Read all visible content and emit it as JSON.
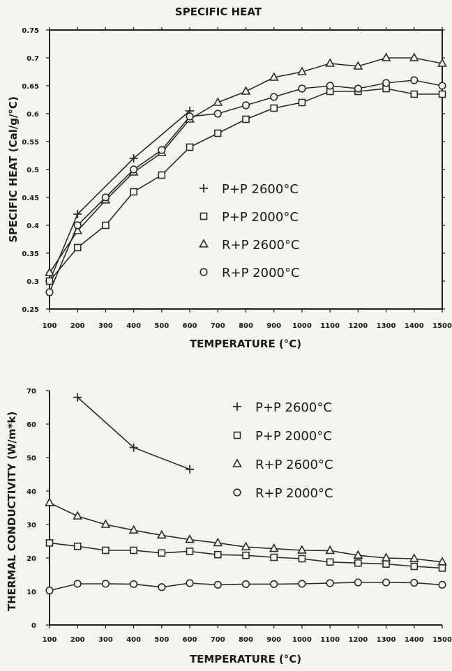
{
  "chart_data": [
    {
      "type": "line",
      "title": "SPECIFIC HEAT",
      "xlabel": "TEMPERATURE (°C)",
      "ylabel": "SPECIFIC HEAT (Cal/g/°C)",
      "xlim": [
        100,
        1500
      ],
      "ylim": [
        0.25,
        0.75
      ],
      "x_ticks": [
        "100",
        "200",
        "300",
        "400",
        "500",
        "600",
        "700",
        "800",
        "900",
        "1000",
        "1100",
        "1200",
        "1300",
        "1400",
        "1500"
      ],
      "y_ticks": [
        "0.25",
        "0.3",
        "0.35",
        "0.4",
        "0.45",
        "0.5",
        "0.55",
        "0.6",
        "0.65",
        "0.7",
        "0.75"
      ],
      "legend_position": "center-right",
      "grid": false,
      "series": [
        {
          "name": "P+P 2600°C",
          "marker": "plus",
          "x": [
            100,
            200,
            400,
            600
          ],
          "y": [
            0.3,
            0.42,
            0.52,
            0.605
          ]
        },
        {
          "name": "P+P 2000°C",
          "marker": "square",
          "x": [
            100,
            200,
            300,
            400,
            500,
            600,
            700,
            800,
            900,
            1000,
            1100,
            1200,
            1300,
            1400,
            1500
          ],
          "y": [
            0.3,
            0.36,
            0.4,
            0.46,
            0.49,
            0.54,
            0.565,
            0.59,
            0.61,
            0.62,
            0.64,
            0.64,
            0.645,
            0.635,
            0.635
          ]
        },
        {
          "name": "R+P 2600°C",
          "marker": "triangle",
          "x": [
            100,
            200,
            300,
            400,
            500,
            600,
            700,
            800,
            900,
            1000,
            1100,
            1200,
            1300,
            1400,
            1500
          ],
          "y": [
            0.315,
            0.39,
            0.445,
            0.495,
            0.53,
            0.59,
            0.62,
            0.64,
            0.665,
            0.675,
            0.69,
            0.685,
            0.7,
            0.7,
            0.69
          ]
        },
        {
          "name": "R+P 2000°C",
          "marker": "circle",
          "x": [
            100,
            200,
            300,
            400,
            500,
            600,
            700,
            800,
            900,
            1000,
            1100,
            1200,
            1300,
            1400,
            1500
          ],
          "y": [
            0.28,
            0.4,
            0.45,
            0.5,
            0.535,
            0.595,
            0.6,
            0.615,
            0.63,
            0.645,
            0.65,
            0.645,
            0.655,
            0.66,
            0.65
          ]
        }
      ]
    },
    {
      "type": "line",
      "title": "",
      "xlabel": "TEMPERATURE (°C)",
      "ylabel": "THERMAL CONDUCTIVITY (W/m*k)",
      "xlim": [
        100,
        1500
      ],
      "ylim": [
        0,
        70
      ],
      "x_ticks": [
        "100",
        "200",
        "300",
        "400",
        "500",
        "600",
        "700",
        "800",
        "900",
        "1000",
        "1100",
        "1200",
        "1300",
        "1400",
        "1500"
      ],
      "y_ticks": [
        "0",
        "10",
        "20",
        "30",
        "40",
        "50",
        "60",
        "70"
      ],
      "legend_position": "top-right",
      "grid": false,
      "series": [
        {
          "name": "P+P 2600°C",
          "marker": "plus",
          "x": [
            200,
            400,
            600
          ],
          "y": [
            68,
            53,
            46.5
          ]
        },
        {
          "name": "P+P 2000°C",
          "marker": "square",
          "x": [
            100,
            200,
            300,
            400,
            500,
            600,
            700,
            800,
            900,
            1000,
            1100,
            1200,
            1300,
            1400,
            1500
          ],
          "y": [
            24.5,
            23.5,
            22.3,
            22.3,
            21.5,
            22.0,
            21.0,
            20.8,
            20.2,
            19.8,
            18.8,
            18.5,
            18.2,
            17.5,
            17.0
          ]
        },
        {
          "name": "R+P 2600°C",
          "marker": "triangle",
          "x": [
            100,
            200,
            300,
            400,
            500,
            600,
            700,
            800,
            900,
            1000,
            1100,
            1200,
            1300,
            1400,
            1500
          ],
          "y": [
            36.5,
            32.5,
            30.0,
            28.3,
            26.8,
            25.5,
            24.5,
            23.3,
            22.8,
            22.3,
            22.2,
            20.8,
            20.0,
            19.8,
            18.8
          ]
        },
        {
          "name": "R+P 2000°C",
          "marker": "circle",
          "x": [
            100,
            200,
            300,
            400,
            500,
            600,
            700,
            800,
            900,
            1000,
            1100,
            1200,
            1300,
            1400,
            1500
          ],
          "y": [
            10.3,
            12.3,
            12.3,
            12.2,
            11.3,
            12.5,
            12.0,
            12.2,
            12.2,
            12.3,
            12.5,
            12.7,
            12.7,
            12.6,
            12.0
          ]
        }
      ]
    }
  ]
}
